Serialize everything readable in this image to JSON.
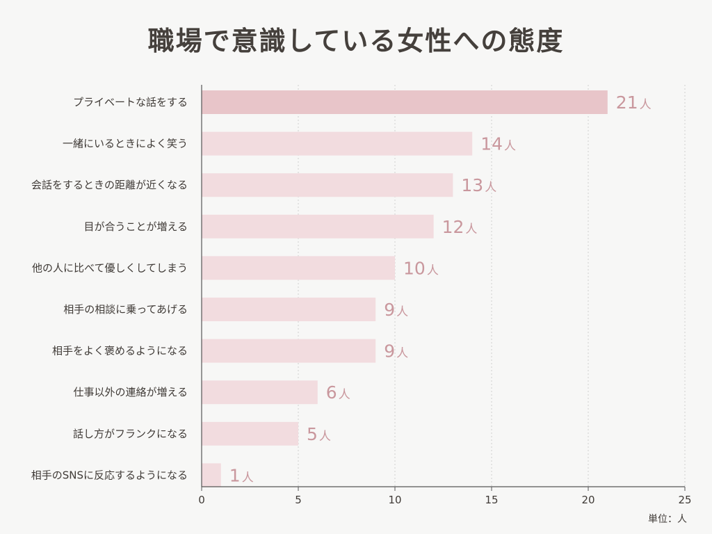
{
  "title": "職場で意識している女性への態度",
  "unit_label": "単位：人",
  "value_suffix": "人",
  "colors": {
    "bar_top": "#e8c5c9",
    "bar": "#f2dcdf",
    "value_text": "#c9979d",
    "grid": "#cfcfcf",
    "axis": "#555555",
    "text": "#3f3a36"
  },
  "chart_data": {
    "type": "bar",
    "orientation": "horizontal",
    "title": "職場で意識している女性への態度",
    "categories": [
      "プライベートな話をする",
      "一緒にいるときによく笑う",
      "会話をするときの距離が近くなる",
      "目が合うことが増える",
      "他の人に比べて優しくしてしまう",
      "相手の相談に乗ってあげる",
      "相手をよく褒めるようになる",
      "仕事以外の連絡が増える",
      "話し方がフランクになる",
      "相手のSNSに反応するようになる"
    ],
    "values": [
      21,
      14,
      13,
      12,
      10,
      9,
      9,
      6,
      5,
      1
    ],
    "xlim": [
      0,
      25
    ],
    "xticks": [
      0,
      5,
      10,
      15,
      20,
      25
    ],
    "grid": true,
    "unit": "単位：人"
  }
}
